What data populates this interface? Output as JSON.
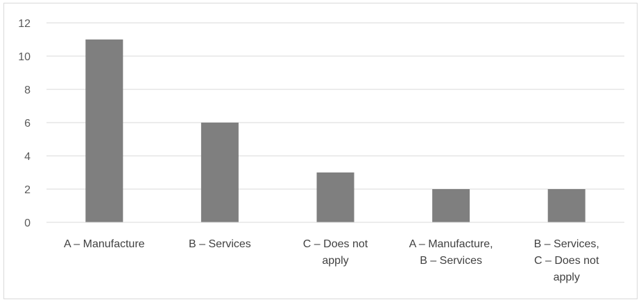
{
  "chart_data": {
    "type": "bar",
    "title": "",
    "xlabel": "",
    "ylabel": "",
    "categories": [
      "A – Manufacture",
      "B – Services",
      "C – Does not apply",
      "A – Manufacture, B – Services",
      "B – Services, C – Does not apply"
    ],
    "category_label_lines": [
      [
        "A – Manufacture"
      ],
      [
        "B – Services"
      ],
      [
        "C – Does not",
        "apply"
      ],
      [
        "A – Manufacture,",
        "B – Services"
      ],
      [
        "B – Services,",
        "C – Does not",
        "apply"
      ]
    ],
    "values": [
      11,
      6,
      3,
      2,
      2
    ],
    "ylim": [
      0,
      12
    ],
    "y_ticks": [
      0,
      2,
      4,
      6,
      8,
      10,
      12
    ],
    "grid": true,
    "legend": "none",
    "colors": {
      "bar": "#7f7f7f",
      "grid": "#d9d9d9",
      "tick_text": "#595959",
      "label_text": "#404040",
      "border": "#d9d9d9"
    }
  }
}
